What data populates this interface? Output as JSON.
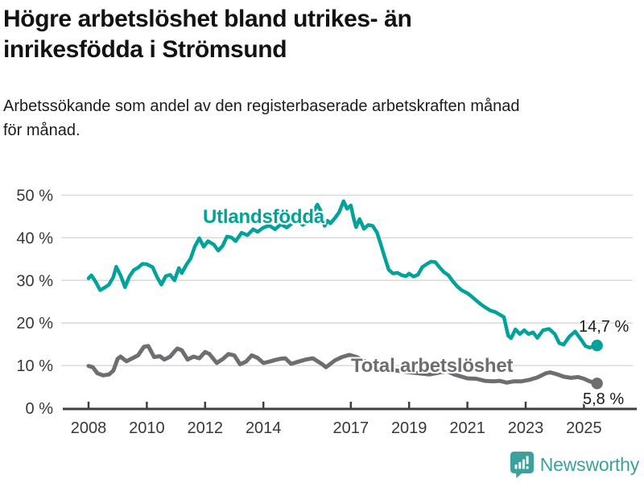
{
  "header": {
    "title_lines": [
      "Högre arbetslöshet bland utrikes- än",
      "inrikesfödda i Strömsund"
    ],
    "subtitle_lines": [
      "Arbetssökande som andel av den registerbaserade arbetskraften månad",
      "för månad."
    ]
  },
  "footer": {
    "brand": "Newsworthy",
    "brand_color": "#3aa19c"
  },
  "chart_data": {
    "type": "line",
    "title": "Högre arbetslöshet bland utrikes- än inrikesfödda i Strömsund",
    "subtitle": "Arbetssökande som andel av den registerbaserade arbetskraften månad för månad.",
    "xlabel": "",
    "ylabel": "",
    "xlim": [
      2008,
      2025.8
    ],
    "ylim": [
      0,
      50
    ],
    "grid": true,
    "legend_position": "inline-labels",
    "colors": {
      "grid": "#d9d9d9",
      "axis": "#3f3f3f",
      "axis_text": "#383838"
    },
    "y_ticks": [
      {
        "value": 0,
        "label": "0 %"
      },
      {
        "value": 10,
        "label": "10 %"
      },
      {
        "value": 20,
        "label": "20 %"
      },
      {
        "value": 30,
        "label": "30 %"
      },
      {
        "value": 40,
        "label": "40 %"
      },
      {
        "value": 50,
        "label": "50 %"
      }
    ],
    "x_ticks": [
      {
        "year": 2008,
        "label": "2008"
      },
      {
        "year": 2010,
        "label": "2010"
      },
      {
        "year": 2012,
        "label": "2012"
      },
      {
        "year": 2014,
        "label": "2014"
      },
      {
        "year": 2017,
        "label": "2017"
      },
      {
        "year": 2019,
        "label": "2019"
      },
      {
        "year": 2021,
        "label": "2021"
      },
      {
        "year": 2023,
        "label": "2023"
      },
      {
        "year": 2025,
        "label": "2025"
      }
    ],
    "series": [
      {
        "name": "Total arbetslöshet",
        "color": "#6d6d72",
        "end_label": "5,8 %",
        "end_value": 5.8,
        "points": [
          [
            2008.0,
            9.9
          ],
          [
            2008.15,
            9.6
          ],
          [
            2008.3,
            8.2
          ],
          [
            2008.5,
            7.7
          ],
          [
            2008.7,
            7.9
          ],
          [
            2008.85,
            8.8
          ],
          [
            2009.0,
            11.6
          ],
          [
            2009.1,
            12.1
          ],
          [
            2009.3,
            11.0
          ],
          [
            2009.5,
            11.7
          ],
          [
            2009.7,
            12.4
          ],
          [
            2009.9,
            14.4
          ],
          [
            2010.05,
            14.6
          ],
          [
            2010.25,
            12.0
          ],
          [
            2010.45,
            12.2
          ],
          [
            2010.6,
            11.4
          ],
          [
            2010.8,
            12.1
          ],
          [
            2010.95,
            13.3
          ],
          [
            2011.05,
            14.0
          ],
          [
            2011.2,
            13.6
          ],
          [
            2011.4,
            11.4
          ],
          [
            2011.6,
            12.1
          ],
          [
            2011.8,
            11.7
          ],
          [
            2012.0,
            13.2
          ],
          [
            2012.15,
            12.7
          ],
          [
            2012.4,
            10.6
          ],
          [
            2012.6,
            11.5
          ],
          [
            2012.8,
            12.7
          ],
          [
            2013.0,
            12.4
          ],
          [
            2013.2,
            10.3
          ],
          [
            2013.4,
            10.9
          ],
          [
            2013.6,
            12.4
          ],
          [
            2013.8,
            11.8
          ],
          [
            2014.0,
            10.6
          ],
          [
            2014.2,
            10.9
          ],
          [
            2014.4,
            11.3
          ],
          [
            2014.6,
            11.6
          ],
          [
            2014.75,
            11.7
          ],
          [
            2014.95,
            10.4
          ],
          [
            2015.2,
            10.9
          ],
          [
            2015.45,
            11.4
          ],
          [
            2015.7,
            11.7
          ],
          [
            2016.0,
            10.4
          ],
          [
            2016.15,
            9.6
          ],
          [
            2016.45,
            11.2
          ],
          [
            2016.7,
            12.0
          ],
          [
            2016.95,
            12.5
          ],
          [
            2017.2,
            12.0
          ],
          [
            2017.5,
            10.9
          ],
          [
            2017.8,
            10.2
          ],
          [
            2018.1,
            9.6
          ],
          [
            2018.5,
            8.9
          ],
          [
            2018.9,
            8.5
          ],
          [
            2019.3,
            8.2
          ],
          [
            2019.7,
            7.9
          ],
          [
            2020.0,
            8.3
          ],
          [
            2020.3,
            8.7
          ],
          [
            2020.55,
            7.9
          ],
          [
            2020.8,
            7.4
          ],
          [
            2021.0,
            7.0
          ],
          [
            2021.3,
            6.9
          ],
          [
            2021.6,
            6.4
          ],
          [
            2021.9,
            6.3
          ],
          [
            2022.1,
            6.4
          ],
          [
            2022.35,
            6.0
          ],
          [
            2022.6,
            6.3
          ],
          [
            2022.85,
            6.3
          ],
          [
            2023.1,
            6.6
          ],
          [
            2023.4,
            7.2
          ],
          [
            2023.7,
            8.2
          ],
          [
            2023.85,
            8.4
          ],
          [
            2024.1,
            7.9
          ],
          [
            2024.3,
            7.4
          ],
          [
            2024.55,
            7.1
          ],
          [
            2024.8,
            7.3
          ],
          [
            2025.0,
            6.9
          ],
          [
            2025.2,
            6.3
          ],
          [
            2025.45,
            5.8
          ]
        ]
      },
      {
        "name": "Utlandsfödda",
        "color": "#00a29b",
        "end_label": "14,7 %",
        "end_value": 14.7,
        "points": [
          [
            2008.0,
            30.5
          ],
          [
            2008.1,
            31.2
          ],
          [
            2008.25,
            29.6
          ],
          [
            2008.4,
            27.7
          ],
          [
            2008.55,
            28.3
          ],
          [
            2008.7,
            29.0
          ],
          [
            2008.85,
            30.8
          ],
          [
            2008.95,
            33.2
          ],
          [
            2009.1,
            31.2
          ],
          [
            2009.25,
            28.4
          ],
          [
            2009.4,
            30.9
          ],
          [
            2009.55,
            32.4
          ],
          [
            2009.7,
            33.0
          ],
          [
            2009.85,
            33.9
          ],
          [
            2010.0,
            33.8
          ],
          [
            2010.2,
            33.1
          ],
          [
            2010.35,
            30.8
          ],
          [
            2010.5,
            29.0
          ],
          [
            2010.65,
            31.0
          ],
          [
            2010.8,
            31.3
          ],
          [
            2010.95,
            30.0
          ],
          [
            2011.1,
            32.9
          ],
          [
            2011.2,
            31.7
          ],
          [
            2011.35,
            33.6
          ],
          [
            2011.5,
            35.1
          ],
          [
            2011.65,
            38.0
          ],
          [
            2011.8,
            39.9
          ],
          [
            2011.95,
            37.9
          ],
          [
            2012.1,
            39.2
          ],
          [
            2012.3,
            38.4
          ],
          [
            2012.45,
            37.0
          ],
          [
            2012.6,
            38.1
          ],
          [
            2012.75,
            40.3
          ],
          [
            2012.9,
            40.1
          ],
          [
            2013.05,
            39.2
          ],
          [
            2013.25,
            41.2
          ],
          [
            2013.45,
            40.6
          ],
          [
            2013.65,
            42.0
          ],
          [
            2013.8,
            41.4
          ],
          [
            2014.0,
            42.4
          ],
          [
            2014.2,
            42.9
          ],
          [
            2014.4,
            42.0
          ],
          [
            2014.6,
            43.2
          ],
          [
            2014.8,
            42.4
          ],
          [
            2015.0,
            43.5
          ],
          [
            2015.15,
            44.3
          ],
          [
            2015.35,
            43.0
          ],
          [
            2015.55,
            44.2
          ],
          [
            2015.7,
            45.8
          ],
          [
            2015.85,
            47.8
          ],
          [
            2016.0,
            45.9
          ],
          [
            2016.1,
            42.8
          ],
          [
            2016.2,
            44.0
          ],
          [
            2016.3,
            43.4
          ],
          [
            2016.45,
            44.6
          ],
          [
            2016.6,
            46.0
          ],
          [
            2016.75,
            48.6
          ],
          [
            2016.87,
            46.8
          ],
          [
            2017.0,
            47.6
          ],
          [
            2017.1,
            44.5
          ],
          [
            2017.18,
            42.5
          ],
          [
            2017.3,
            44.4
          ],
          [
            2017.45,
            42.1
          ],
          [
            2017.6,
            43.0
          ],
          [
            2017.75,
            42.8
          ],
          [
            2017.9,
            41.2
          ],
          [
            2018.05,
            38.0
          ],
          [
            2018.15,
            35.7
          ],
          [
            2018.3,
            32.5
          ],
          [
            2018.45,
            31.6
          ],
          [
            2018.6,
            31.8
          ],
          [
            2018.75,
            31.2
          ],
          [
            2018.9,
            31.0
          ],
          [
            2019.0,
            31.6
          ],
          [
            2019.15,
            30.9
          ],
          [
            2019.3,
            31.3
          ],
          [
            2019.45,
            33.1
          ],
          [
            2019.6,
            33.8
          ],
          [
            2019.75,
            34.4
          ],
          [
            2019.9,
            34.3
          ],
          [
            2020.05,
            33.0
          ],
          [
            2020.2,
            31.9
          ],
          [
            2020.35,
            31.2
          ],
          [
            2020.5,
            29.8
          ],
          [
            2020.65,
            28.6
          ],
          [
            2020.8,
            27.7
          ],
          [
            2021.0,
            27.0
          ],
          [
            2021.15,
            26.2
          ],
          [
            2021.3,
            25.3
          ],
          [
            2021.5,
            24.2
          ],
          [
            2021.65,
            23.5
          ],
          [
            2021.8,
            22.9
          ],
          [
            2021.95,
            22.6
          ],
          [
            2022.1,
            22.0
          ],
          [
            2022.25,
            21.4
          ],
          [
            2022.4,
            17.0
          ],
          [
            2022.5,
            16.4
          ],
          [
            2022.65,
            18.5
          ],
          [
            2022.8,
            17.4
          ],
          [
            2022.95,
            18.3
          ],
          [
            2023.1,
            17.4
          ],
          [
            2023.25,
            17.8
          ],
          [
            2023.4,
            16.5
          ],
          [
            2023.6,
            18.3
          ],
          [
            2023.8,
            18.6
          ],
          [
            2024.0,
            17.4
          ],
          [
            2024.15,
            15.3
          ],
          [
            2024.3,
            14.9
          ],
          [
            2024.5,
            16.8
          ],
          [
            2024.7,
            18.0
          ],
          [
            2024.9,
            16.1
          ],
          [
            2025.05,
            14.6
          ],
          [
            2025.2,
            14.2
          ],
          [
            2025.45,
            14.7
          ]
        ]
      }
    ]
  }
}
